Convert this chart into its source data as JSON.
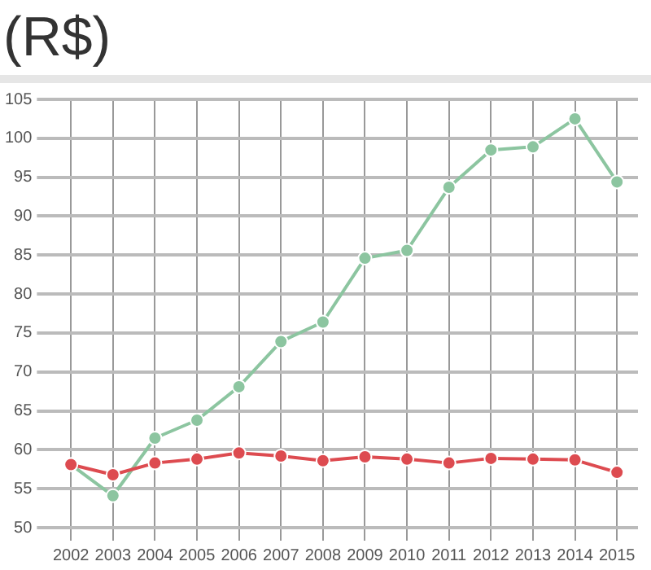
{
  "chart_data": {
    "type": "line",
    "title": "(R$)",
    "categories": [
      "2002",
      "2003",
      "2004",
      "2005",
      "2006",
      "2007",
      "2008",
      "2009",
      "2010",
      "2011",
      "2012",
      "2013",
      "2014",
      "2015"
    ],
    "series": [
      {
        "color": "#8cc5a0",
        "values": [
          58.1,
          54.1,
          61.5,
          63.8,
          68.1,
          73.9,
          76.4,
          84.6,
          85.6,
          93.7,
          98.5,
          98.9,
          102.5,
          94.4
        ]
      },
      {
        "color": "#dd4b50",
        "values": [
          58.1,
          56.8,
          58.3,
          58.8,
          59.6,
          59.2,
          58.6,
          59.1,
          58.8,
          58.3,
          58.9,
          58.8,
          58.7,
          57.1
        ]
      }
    ],
    "ylim": [
      50,
      105
    ],
    "yticks": [
      50,
      55,
      60,
      65,
      70,
      75,
      80,
      85,
      90,
      95,
      100,
      105
    ],
    "grid": true,
    "legend": false,
    "marker": "circle",
    "line_style": "solid"
  }
}
